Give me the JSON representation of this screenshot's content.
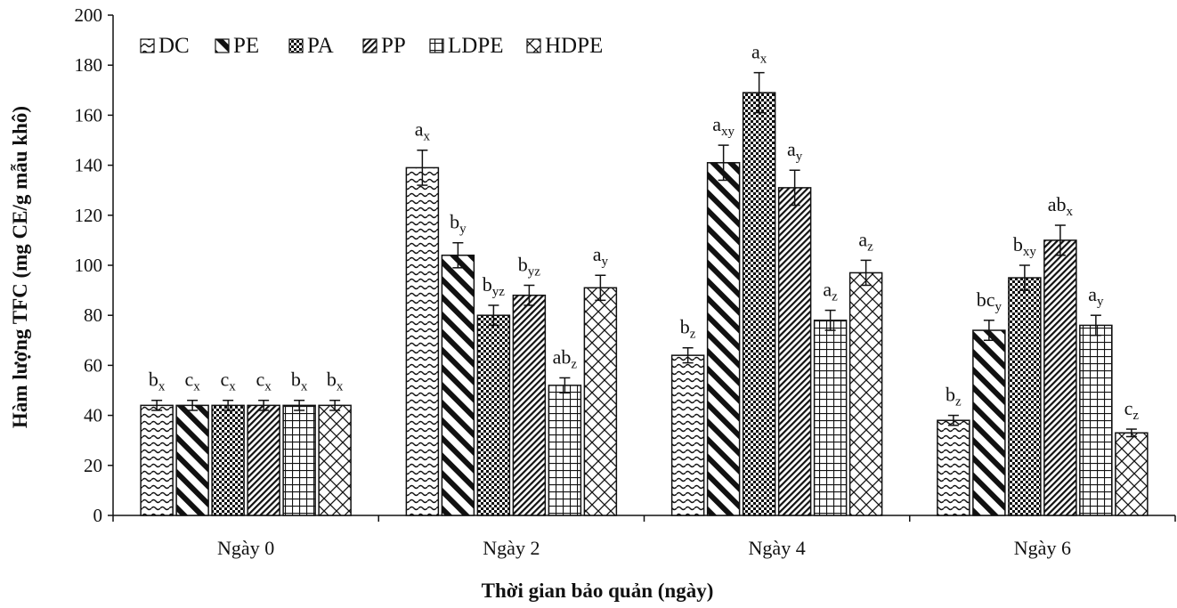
{
  "chart_data": {
    "type": "bar",
    "title": "",
    "xlabel": "Thời gian bảo quản (ngày)",
    "ylabel": "Hàm lượng TFC (mg CE/g mẫu khô)",
    "ylim": [
      0,
      200
    ],
    "yticks": [
      0,
      20,
      40,
      60,
      80,
      100,
      120,
      140,
      160,
      180,
      200
    ],
    "grid": false,
    "legend_position": "top-left",
    "categories": [
      "Ngày 0",
      "Ngày 2",
      "Ngày 4",
      "Ngày 6"
    ],
    "series": [
      {
        "name": "DC",
        "pattern": "wave",
        "values": [
          44,
          139,
          64,
          38
        ],
        "errors": [
          2,
          7,
          3,
          2
        ],
        "labels": [
          [
            "b",
            "x"
          ],
          [
            "a",
            "x"
          ],
          [
            "b",
            "z"
          ],
          [
            "b",
            "z"
          ]
        ]
      },
      {
        "name": "PE",
        "pattern": "diag-thick",
        "values": [
          44,
          104,
          141,
          74
        ],
        "errors": [
          2,
          5,
          7,
          4
        ],
        "labels": [
          [
            "c",
            "x"
          ],
          [
            "b",
            "y"
          ],
          [
            "a",
            "xy"
          ],
          [
            "bc",
            "y"
          ]
        ]
      },
      {
        "name": "PA",
        "pattern": "checker",
        "values": [
          44,
          80,
          169,
          95
        ],
        "errors": [
          2,
          4,
          8,
          5
        ],
        "labels": [
          [
            "c",
            "x"
          ],
          [
            "b",
            "yz"
          ],
          [
            "a",
            "x"
          ],
          [
            "b",
            "xy"
          ]
        ]
      },
      {
        "name": "PP",
        "pattern": "diag-thin",
        "values": [
          44,
          88,
          131,
          110
        ],
        "errors": [
          2,
          4,
          7,
          6
        ],
        "labels": [
          [
            "c",
            "x"
          ],
          [
            "b",
            "yz"
          ],
          [
            "a",
            "y"
          ],
          [
            "ab",
            "x"
          ]
        ]
      },
      {
        "name": "LDPE",
        "pattern": "grid",
        "values": [
          44,
          52,
          78,
          76
        ],
        "errors": [
          2,
          3,
          4,
          4
        ],
        "labels": [
          [
            "b",
            "x"
          ],
          [
            "ab",
            "z"
          ],
          [
            "a",
            "z"
          ],
          [
            "a",
            "y"
          ]
        ]
      },
      {
        "name": "HDPE",
        "pattern": "diamond",
        "values": [
          44,
          91,
          97,
          33
        ],
        "errors": [
          2,
          5,
          5,
          1.5
        ],
        "labels": [
          [
            "b",
            "x"
          ],
          [
            "a",
            "y"
          ],
          [
            "a",
            "z"
          ],
          [
            "c",
            "z"
          ]
        ]
      }
    ]
  }
}
